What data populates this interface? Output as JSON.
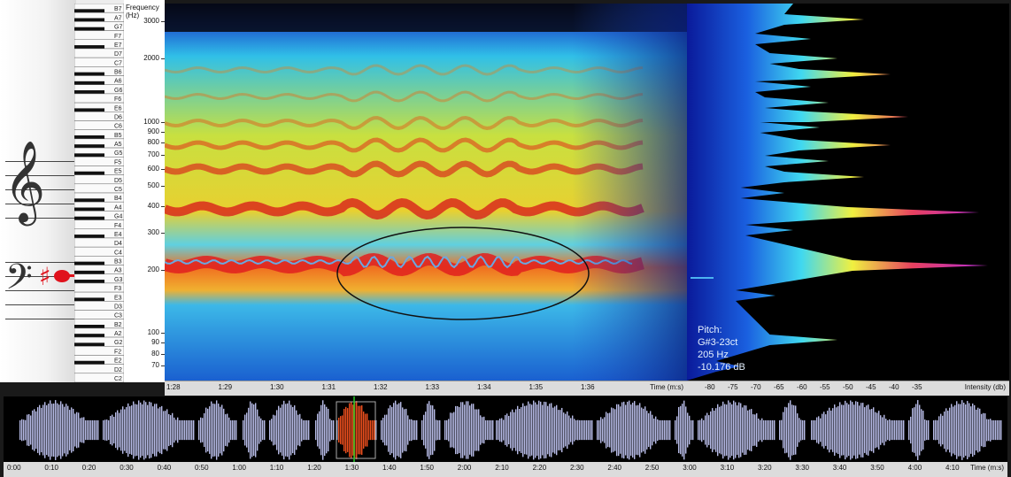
{
  "piano": {
    "note_labels": [
      "B7",
      "A7",
      "G7",
      "F7",
      "E7",
      "D7",
      "C7",
      "B6",
      "A6",
      "G6",
      "F6",
      "E6",
      "D6",
      "C6",
      "B5",
      "A5",
      "G5",
      "F5",
      "E5",
      "D5",
      "C5",
      "B4",
      "A4",
      "G4",
      "F4",
      "E4",
      "D4",
      "C4",
      "B3",
      "A3",
      "G3",
      "F3",
      "E3",
      "D3",
      "C3",
      "B2",
      "A2",
      "G2",
      "F2",
      "E2",
      "D2",
      "C2"
    ],
    "active_note_color": "#e0121c"
  },
  "freq_axis": {
    "title": "Frequency (Hz)",
    "ticks": [
      "3000",
      "2000",
      "1000",
      "900",
      "800",
      "700",
      "600",
      "500",
      "400",
      "300",
      "200",
      "100",
      "90",
      "80",
      "70"
    ]
  },
  "spectrogram": {
    "colormap": [
      "#0a2a9a",
      "#1e6ad8",
      "#3cc8f0",
      "#e8e020",
      "#f08020",
      "#e02030"
    ]
  },
  "intensity": {
    "pitch_title": "Pitch:",
    "pitch_note": "G#3-23ct",
    "pitch_hz": "205 Hz",
    "pitch_db": "-10.176 dB",
    "axis_ticks": [
      "-80",
      "-75",
      "-70",
      "-65",
      "-60",
      "-55",
      "-50",
      "-45",
      "-40",
      "-35"
    ],
    "axis_title": "Intensity (db)"
  },
  "time_axis_top": {
    "ticks": [
      "1:28",
      "1:29",
      "1:30",
      "1:31",
      "1:32",
      "1:33",
      "1:34",
      "1:35",
      "1:36"
    ],
    "title": "Time (m:s)"
  },
  "waveform": {
    "color": "#b8bce8",
    "selection_color": "#f0501e",
    "playhead_color": "#22c822"
  },
  "time_axis_bottom": {
    "ticks": [
      "0:00",
      "0:10",
      "0:20",
      "0:30",
      "0:40",
      "0:50",
      "1:00",
      "1:10",
      "1:20",
      "1:30",
      "1:40",
      "1:50",
      "2:00",
      "2:10",
      "2:20",
      "2:30",
      "2:40",
      "2:50",
      "3:00",
      "3:10",
      "3:20",
      "3:30",
      "3:40",
      "3:50",
      "4:00",
      "4:10"
    ],
    "title": "Time (m:s)"
  }
}
